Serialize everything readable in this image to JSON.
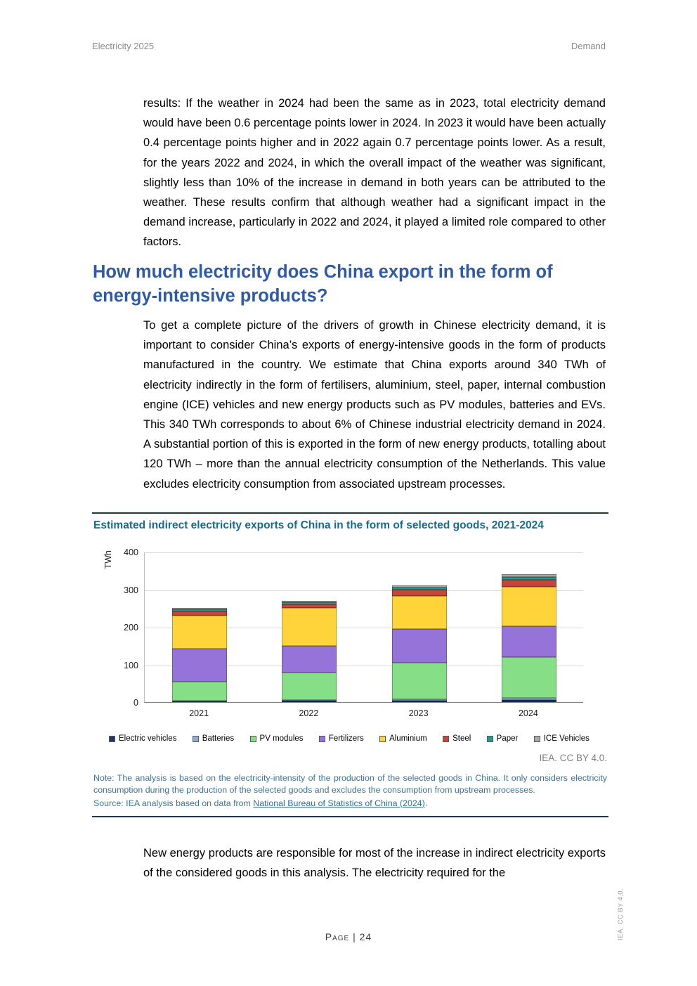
{
  "page": {
    "header_left": "Electricity 2025",
    "header_right": "Demand",
    "footer": "Page | 24",
    "side_note": "IEA. CC BY 4.0."
  },
  "heading": {
    "text": "How much electricity does China export in the form of energy-intensive products?"
  },
  "paragraphs": {
    "p1": "results: If the weather in 2024 had been the same as in 2023, total electricity demand would have been 0.6 percentage points lower in 2024. In 2023 it would have been actually 0.4 percentage points higher and in 2022 again 0.7 percentage points lower. As a result, for the years 2022 and 2024, in which the overall impact of the weather was significant, slightly less than 10% of the increase in demand in both years can be attributed to the weather. These results confirm that although weather had a significant impact in the demand increase, particularly in 2022 and 2024, it played a limited role compared to other factors.",
    "p2": "To get a complete picture of the drivers of growth in Chinese electricity demand, it is important to consider China’s exports of energy-intensive goods in the form of products manufactured in the country. We estimate that China exports around 340 TWh of electricity indirectly in the form of fertilisers, aluminium, steel, paper, internal combustion engine (ICE) vehicles and new energy products such as PV modules, batteries and EVs. This 340 TWh corresponds to about 6% of Chinese industrial electricity demand in 2024. A substantial portion of this is exported in the form of new energy products, totalling about 120 TWh – more than the annual electricity consumption of the Netherlands. This value excludes electricity consumption from associated upstream processes.",
    "p3": "New energy products are responsible for most of the increase in indirect electricity exports of the considered goods in this analysis. The electricity required for the"
  },
  "figure": {
    "title": "Estimated indirect electricity exports of China in the form of selected goods, 2021-2024",
    "credit": "IEA. CC BY 4.0.",
    "note": "Note: The analysis is based on the electricity-intensity of the production of the selected goods in China. It only considers electricity consumption during the production of the selected goods and excludes the consumption from upstream processes.",
    "source_prefix": "Source: IEA analysis based on data from ",
    "source_link": "National Bureau of Statistics of China (2024)",
    "source_suffix": "."
  },
  "chart_data": {
    "type": "bar",
    "stacked": true,
    "title": "Estimated indirect electricity exports of China in the form of selected goods, 2021-2024",
    "xlabel": "",
    "ylabel": "TWh",
    "ylim": [
      0,
      400
    ],
    "yticks": [
      0,
      100,
      200,
      300,
      400
    ],
    "grid": true,
    "legend_position": "bottom",
    "categories": [
      "2021",
      "2022",
      "2023",
      "2024"
    ],
    "series": [
      {
        "name": "Electric vehicles",
        "color": "#1F3864",
        "values": [
          2,
          3,
          4,
          6
        ]
      },
      {
        "name": "Batteries",
        "color": "#8FAADC",
        "values": [
          2,
          3,
          4,
          6
        ]
      },
      {
        "name": "PV modules",
        "color": "#86DF86",
        "values": [
          50,
          72,
          97,
          108
        ]
      },
      {
        "name": "Fertilizers",
        "color": "#9673D9",
        "values": [
          88,
          72,
          90,
          82
        ]
      },
      {
        "name": "Aluminium",
        "color": "#FFD33A",
        "values": [
          88,
          100,
          88,
          105
        ]
      },
      {
        "name": "Steel",
        "color": "#C4453B",
        "values": [
          12,
          10,
          16,
          18
        ]
      },
      {
        "name": "Paper",
        "color": "#2E968A",
        "values": [
          4,
          6,
          6,
          8
        ]
      },
      {
        "name": "ICE Vehicles",
        "color": "#A8A8A8",
        "values": [
          4,
          4,
          5,
          7
        ]
      }
    ],
    "totals": {
      "2021": 250,
      "2022": 270,
      "2023": 310,
      "2024": 340
    }
  }
}
